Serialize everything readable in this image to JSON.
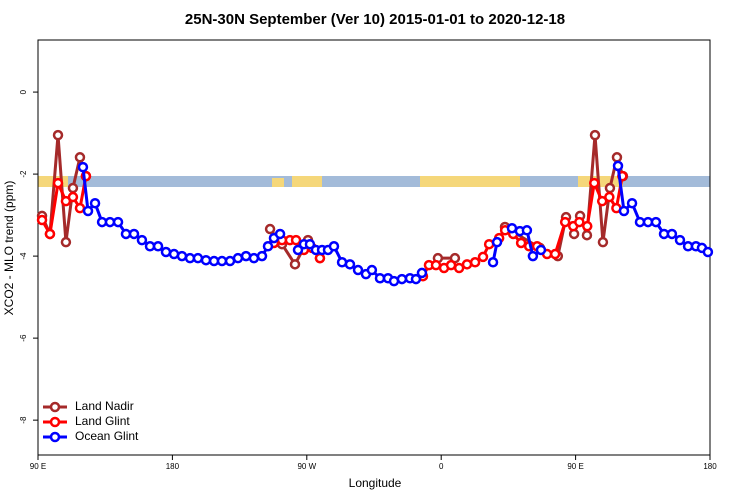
{
  "chart_data": {
    "type": "line",
    "title": "25N-30N September (Ver 10)   2015-01-01 to 2020-12-18",
    "x_label": "Longitude",
    "y_label": "XCO2 - MLO trend (ppm)",
    "xlim": [
      90,
      540
    ],
    "ylim": [
      -8.85,
      1.27
    ],
    "xticks": [
      {
        "value": 90,
        "label": "90 E"
      },
      180,
      {
        "value": 270,
        "label": "90 W"
      },
      {
        "value": 360,
        "label": "0"
      },
      {
        "value": 450,
        "label": "90 E"
      },
      180
    ],
    "yticks": [
      0,
      -2,
      -4,
      -6,
      -8
    ],
    "legend": "bottom-left",
    "series": [
      {
        "name": "Land Nadir",
        "color": "#a52a2a",
        "x": [
          92.7,
          98.0,
          103.4,
          108.7,
          113.4,
          118.1,
          122.1,
          null,
          245.4,
          253.4,
          262.1,
          270.8,
          278.8,
          null,
          357.8,
          369.2,
          null,
          402.7,
          426.1,
          438.1,
          443.6,
          449.0,
          453.0,
          457.6,
          463.0,
          468.3,
          473.0,
          477.7,
          481.7
        ],
        "values": [
          -3.02,
          -3.46,
          -1.05,
          -3.66,
          -2.34,
          -1.59,
          -2.05,
          null,
          -3.34,
          -3.71,
          -4.2,
          -3.61,
          -4.05,
          null,
          -4.05,
          -4.05,
          null,
          -3.29,
          -3.8,
          -4.0,
          -3.05,
          -3.46,
          -3.02,
          -3.49,
          -1.05,
          -3.66,
          -2.34,
          -1.59,
          -2.05
        ]
      },
      {
        "name": "Land Glint",
        "color": "#ff0000",
        "x": [
          92.7,
          98.0,
          103.4,
          108.7,
          113.4,
          118.1,
          122.1,
          null,
          248.0,
          253.4,
          258.7,
          262.8,
          268.1,
          273.5,
          278.8,
          null,
          347.8,
          351.8,
          356.5,
          361.9,
          366.6,
          372.0,
          377.3,
          382.7,
          388.0,
          392.1,
          398.8,
          402.8,
          408.2,
          413.5,
          418.9,
          424.2,
          430.9,
          436.3,
          443.0,
          448.4,
          452.5,
          457.8,
          462.5,
          467.8,
          472.6,
          477.3,
          481.3
        ],
        "values": [
          -3.12,
          -3.46,
          -2.22,
          -2.66,
          -2.56,
          -2.83,
          -2.05,
          null,
          -3.68,
          -3.61,
          -3.61,
          -3.61,
          -3.85,
          -3.8,
          -4.05,
          null,
          -4.49,
          -4.22,
          -4.22,
          -4.29,
          -4.22,
          -4.29,
          -4.2,
          -4.15,
          -4.02,
          -3.71,
          -3.56,
          -3.37,
          -3.46,
          -3.68,
          -3.76,
          -3.76,
          -3.95,
          -3.95,
          -3.17,
          -3.27,
          -3.17,
          -3.27,
          -2.22,
          -2.66,
          -2.56,
          -2.83,
          -2.05
        ]
      },
      {
        "name": "Ocean Glint",
        "color": "#0000ff",
        "x": [
          120.1,
          123.5,
          128.2,
          132.9,
          138.2,
          143.6,
          148.9,
          154.3,
          159.6,
          165.0,
          170.4,
          175.7,
          181.1,
          186.4,
          191.8,
          197.1,
          202.5,
          207.9,
          213.2,
          218.6,
          223.9,
          229.3,
          234.6,
          240.0,
          244.0,
          248.0,
          252.1,
          null,
          264.1,
          268.1,
          272.1,
          276.1,
          280.2,
          284.2,
          288.2,
          293.6,
          298.9,
          304.3,
          309.6,
          313.6,
          319.0,
          324.4,
          328.4,
          333.7,
          339.1,
          343.1,
          347.1,
          null,
          394.7,
          397.4,
          null,
          407.4,
          412.7,
          417.4,
          421.4,
          426.8,
          null,
          478.4,
          482.4,
          487.8,
          493.1,
          498.5,
          503.8,
          509.2,
          514.5,
          519.9,
          525.3,
          530.6,
          534.6,
          538.6
        ],
        "values": [
          -1.83,
          -2.9,
          -2.71,
          -3.17,
          -3.17,
          -3.17,
          -3.46,
          -3.46,
          -3.61,
          -3.76,
          -3.76,
          -3.9,
          -3.95,
          -4.0,
          -4.05,
          -4.05,
          -4.1,
          -4.12,
          -4.12,
          -4.12,
          -4.05,
          -4.0,
          -4.05,
          -4.0,
          -3.76,
          -3.56,
          -3.46,
          null,
          -3.85,
          -3.71,
          -3.71,
          -3.85,
          -3.85,
          -3.85,
          -3.76,
          -4.15,
          -4.2,
          -4.34,
          -4.44,
          -4.34,
          -4.54,
          -4.54,
          -4.61,
          -4.56,
          -4.54,
          -4.56,
          -4.41,
          null,
          -4.15,
          -3.66,
          null,
          -3.32,
          -3.39,
          -3.37,
          -4.0,
          -3.85,
          null,
          -1.8,
          -2.9,
          -2.71,
          -3.17,
          -3.17,
          -3.17,
          -3.46,
          -3.46,
          -3.61,
          -3.76,
          -3.76,
          -3.8,
          -3.9
        ]
      }
    ]
  }
}
